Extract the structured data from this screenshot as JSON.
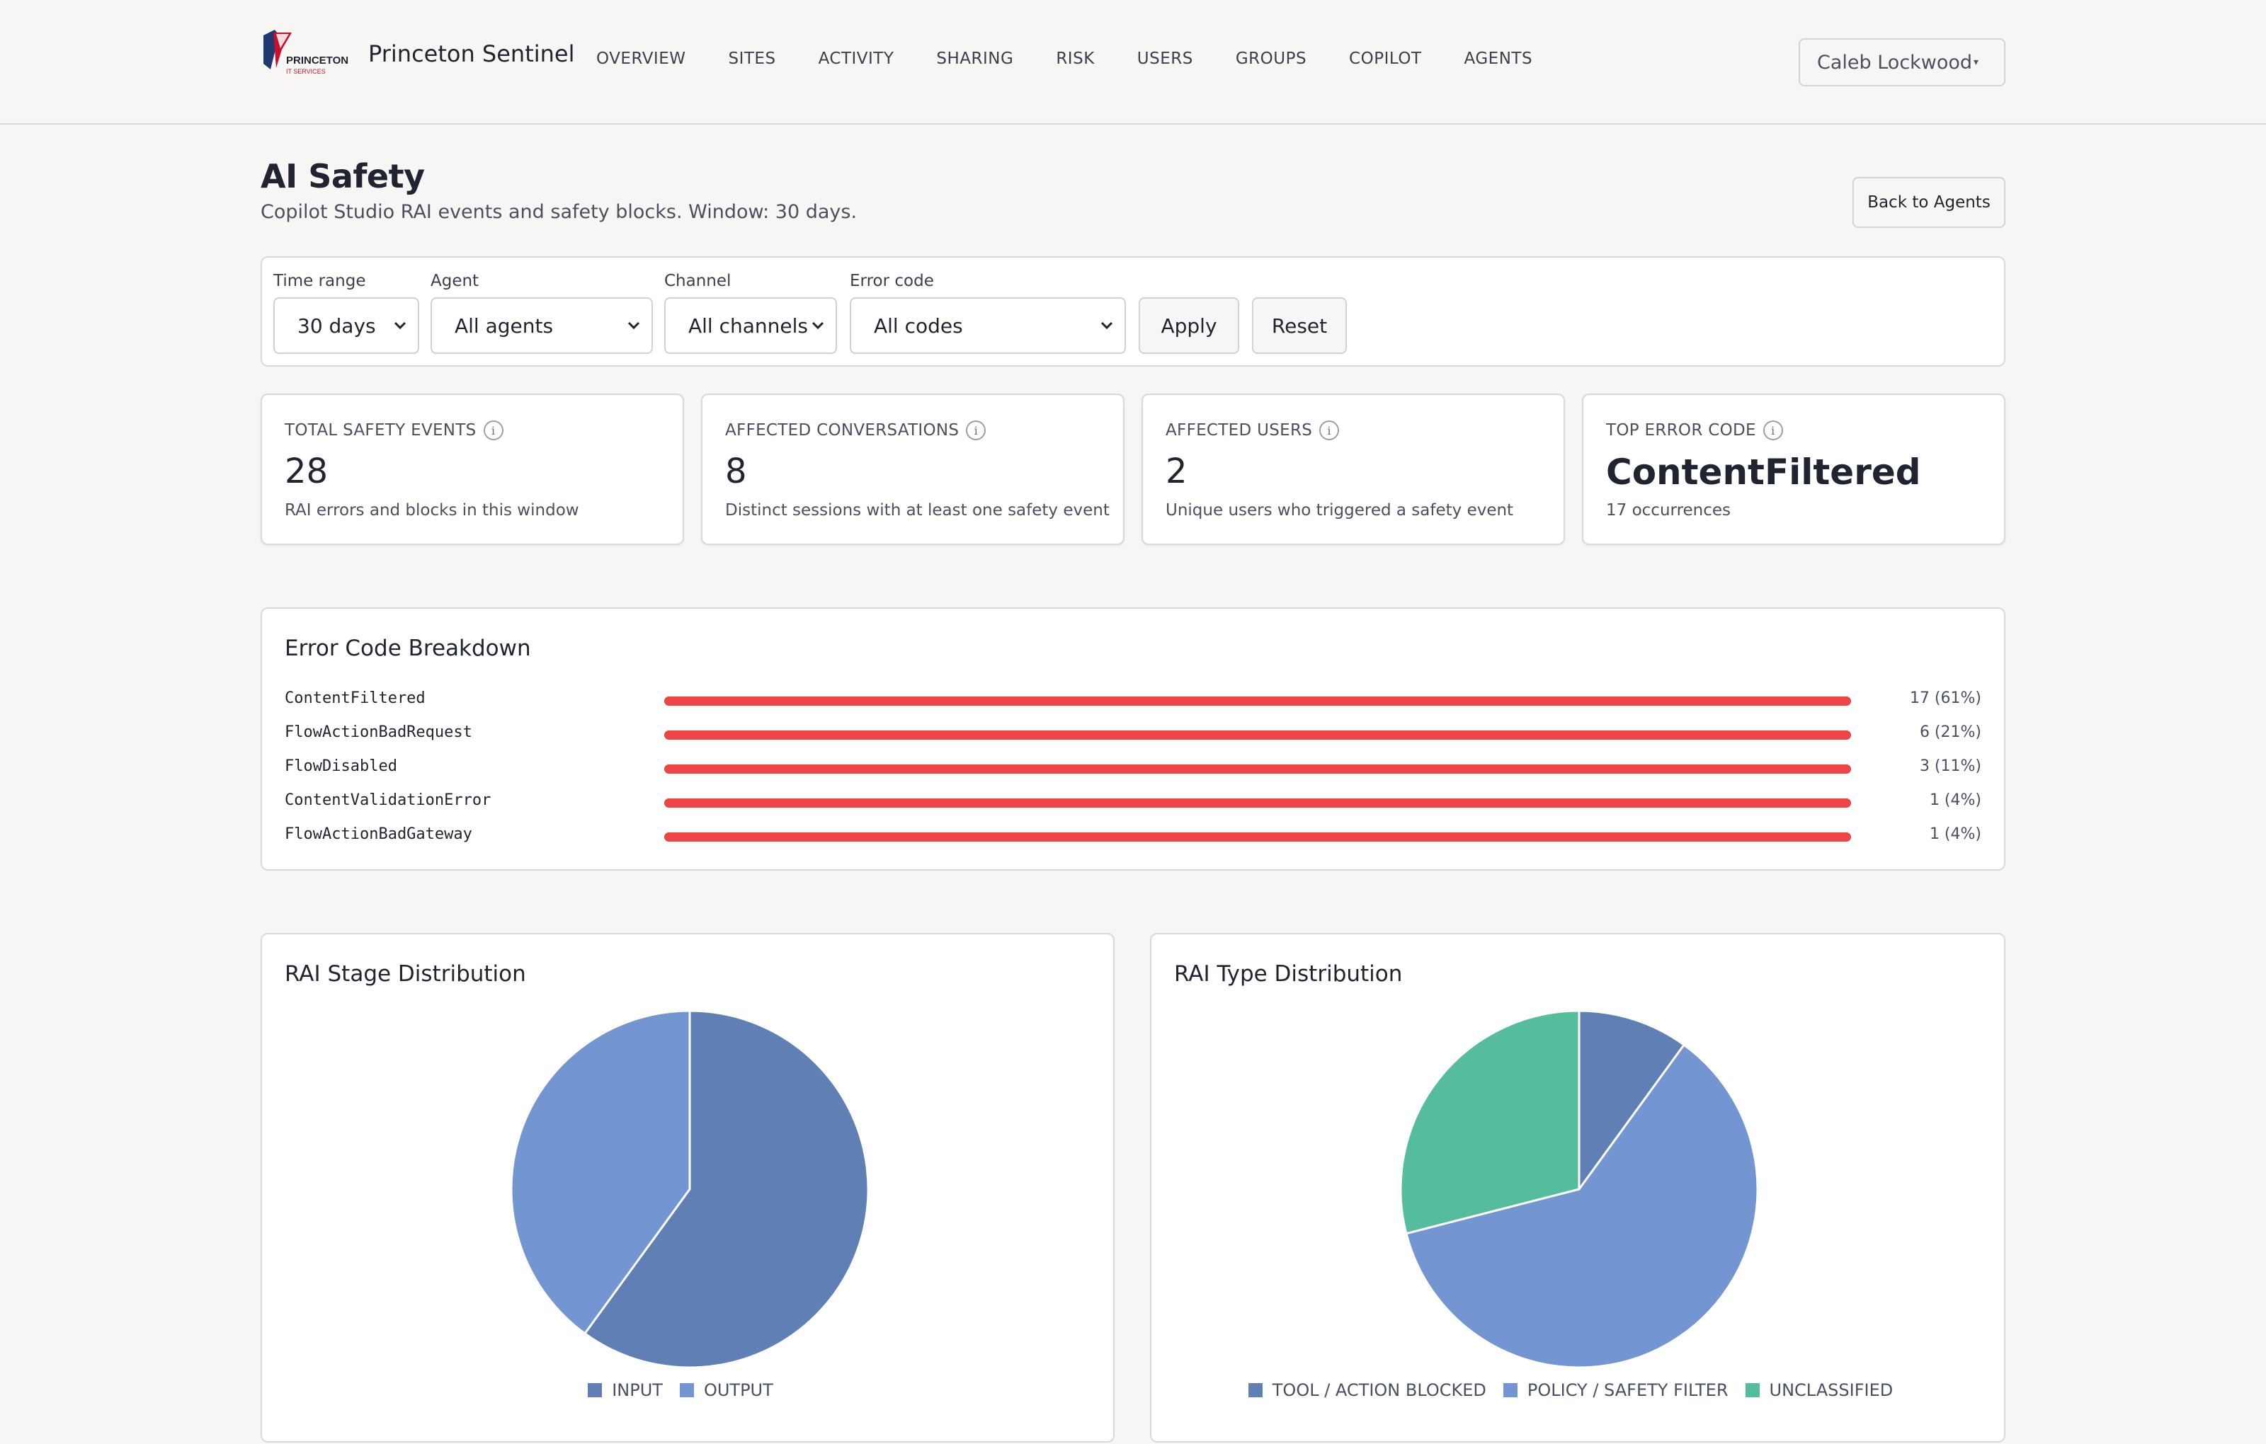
{
  "app": {
    "brand_name": "Princeton Sentinel",
    "logo_text_top": "PRINCETON",
    "logo_text_bottom": "IT SERVICES"
  },
  "nav": {
    "items": [
      {
        "label": "OVERVIEW"
      },
      {
        "label": "SITES"
      },
      {
        "label": "ACTIVITY"
      },
      {
        "label": "SHARING"
      },
      {
        "label": "RISK"
      },
      {
        "label": "USERS"
      },
      {
        "label": "GROUPS"
      },
      {
        "label": "COPILOT"
      },
      {
        "label": "AGENTS"
      }
    ]
  },
  "user_menu": {
    "name": "Caleb Lockwood",
    "caret": "▾"
  },
  "page": {
    "title": "AI Safety",
    "subtitle": "Copilot Studio RAI events and safety blocks. Window: 30 days.",
    "back_label": "Back to Agents"
  },
  "filters": {
    "time_range": {
      "label": "Time range",
      "value": "30 days"
    },
    "agent": {
      "label": "Agent",
      "value": "All agents"
    },
    "channel": {
      "label": "Channel",
      "value": "All channels"
    },
    "error_code": {
      "label": "Error code",
      "value": "All codes"
    },
    "apply_label": "Apply",
    "reset_label": "Reset"
  },
  "kpis": [
    {
      "label": "TOTAL SAFETY EVENTS",
      "value": "28",
      "desc": "RAI errors and blocks in this window"
    },
    {
      "label": "AFFECTED CONVERSATIONS",
      "value": "8",
      "desc": "Distinct sessions with at least one safety event"
    },
    {
      "label": "AFFECTED USERS",
      "value": "2",
      "desc": "Unique users who triggered a safety event"
    },
    {
      "label": "TOP ERROR CODE",
      "value": "ContentFiltered",
      "desc": "17 occurrences"
    }
  ],
  "info_glyph": "i",
  "error_breakdown": {
    "title": "Error Code Breakdown",
    "bar_color": "#ef4444",
    "rows": [
      {
        "code": "ContentFiltered",
        "count_label": "17 (61%)",
        "fill": 1.0
      },
      {
        "code": "FlowActionBadRequest",
        "count_label": "6 (21%)",
        "fill": 1.0
      },
      {
        "code": "FlowDisabled",
        "count_label": "3 (11%)",
        "fill": 1.0
      },
      {
        "code": "ContentValidationError",
        "count_label": "1 (4%)",
        "fill": 1.0
      },
      {
        "code": "FlowActionBadGateway",
        "count_label": "1 (4%)",
        "fill": 1.0
      }
    ]
  },
  "chart_data": [
    {
      "type": "pie",
      "title": "RAI Stage Distribution",
      "slices": [
        {
          "name": "INPUT",
          "value": 60,
          "color": "#6080b5"
        },
        {
          "name": "OUTPUT",
          "value": 40,
          "color": "#7396d2"
        }
      ]
    },
    {
      "type": "pie",
      "title": "RAI Type Distribution",
      "slices": [
        {
          "name": "TOOL / ACTION BLOCKED",
          "value": 10,
          "color": "#6080b5"
        },
        {
          "name": "POLICY / SAFETY FILTER",
          "value": 61,
          "color": "#7396d2"
        },
        {
          "name": "UNCLASSIFIED",
          "value": 29,
          "color": "#56bc9e"
        }
      ]
    }
  ]
}
